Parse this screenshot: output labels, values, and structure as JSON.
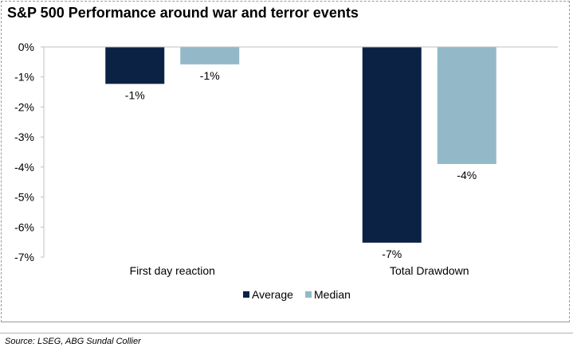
{
  "chart_data": {
    "type": "bar",
    "title": "S&P 500 Performance around war and terror events",
    "categories": [
      "First day reaction",
      "Total Drawdown"
    ],
    "series": [
      {
        "name": "Average",
        "color": "#0b2245",
        "values": [
          -1.23,
          -6.52
        ],
        "labels": [
          "-1%",
          "-7%"
        ]
      },
      {
        "name": "Median",
        "color": "#93b9c9",
        "values": [
          -0.58,
          -3.9
        ],
        "labels": [
          "-1%",
          "-4%"
        ]
      }
    ],
    "ylim": [
      -7,
      0
    ],
    "yticks": [
      0,
      -1,
      -2,
      -3,
      -4,
      -5,
      -6,
      -7
    ],
    "ytick_labels": [
      "0%",
      "-1%",
      "-2%",
      "-3%",
      "-4%",
      "-5%",
      "-6%",
      "-7%"
    ],
    "xlabel": "",
    "ylabel": "",
    "legend_position": "bottom-center",
    "grid": false
  },
  "source": "Source: LSEG, ABG Sundal Collier"
}
